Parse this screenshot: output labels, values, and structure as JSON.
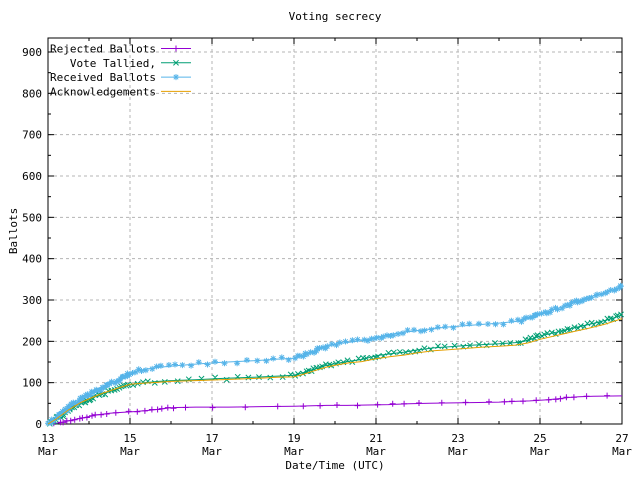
{
  "chart_data": {
    "type": "line",
    "title": "Voting secrecy",
    "xlabel": "Date/Time (UTC)",
    "ylabel": "Ballots",
    "grid": true,
    "legend_position": "top-left",
    "x_unit": "days since 13 Mar 00:00 UTC",
    "xlim": [
      0,
      14
    ],
    "ylim": [
      0,
      940
    ],
    "yticks": [
      0,
      100,
      200,
      300,
      400,
      500,
      600,
      700,
      800,
      900
    ],
    "ytick_minor_step": 50,
    "xticks": [
      {
        "day": 0,
        "line1": "13",
        "line2": "Mar"
      },
      {
        "day": 2,
        "line1": "15",
        "line2": "Mar"
      },
      {
        "day": 4,
        "line1": "17",
        "line2": "Mar"
      },
      {
        "day": 6,
        "line1": "19",
        "line2": "Mar"
      },
      {
        "day": 8,
        "line1": "21",
        "line2": "Mar"
      },
      {
        "day": 10,
        "line1": "23",
        "line2": "Mar"
      },
      {
        "day": 12,
        "line1": "25",
        "line2": "Mar"
      },
      {
        "day": 14,
        "line1": "27",
        "line2": "Mar"
      }
    ],
    "xtick_minor_days": [
      1,
      3,
      5,
      7,
      9,
      11,
      13
    ],
    "grid_color": "#b4b4b4",
    "axis_color": "#000000",
    "series": [
      {
        "name": "Rejected Ballots",
        "color": "#9400d3",
        "marker": "plus",
        "density": "sparse",
        "points": [
          [
            0.1,
            0
          ],
          [
            0.35,
            4
          ],
          [
            0.6,
            10
          ],
          [
            0.9,
            16
          ],
          [
            1.2,
            22
          ],
          [
            1.5,
            26
          ],
          [
            1.8,
            28
          ],
          [
            2.1,
            30
          ],
          [
            2.45,
            33
          ],
          [
            2.75,
            36
          ],
          [
            2.95,
            39
          ],
          [
            3.15,
            40
          ],
          [
            3.6,
            41
          ],
          [
            4.4,
            41
          ],
          [
            5.2,
            42
          ],
          [
            6.0,
            43
          ],
          [
            6.45,
            44
          ],
          [
            6.8,
            45
          ],
          [
            7.3,
            45
          ],
          [
            7.8,
            46
          ],
          [
            8.3,
            47
          ],
          [
            8.8,
            49
          ],
          [
            9.3,
            50
          ],
          [
            9.9,
            51
          ],
          [
            10.5,
            52
          ],
          [
            11.0,
            53
          ],
          [
            11.45,
            55
          ],
          [
            11.75,
            56
          ],
          [
            12.1,
            58
          ],
          [
            12.45,
            61
          ],
          [
            12.7,
            64
          ],
          [
            12.95,
            66
          ],
          [
            13.3,
            67
          ],
          [
            14.0,
            68
          ]
        ]
      },
      {
        "name": "Vote Tallied,",
        "color": "#009e73",
        "marker": "cross",
        "density": "dense",
        "points": [
          [
            0,
            0
          ],
          [
            0.2,
            12
          ],
          [
            0.5,
            33
          ],
          [
            0.8,
            50
          ],
          [
            1.05,
            62
          ],
          [
            1.35,
            74
          ],
          [
            1.65,
            83
          ],
          [
            2.0,
            95
          ],
          [
            2.35,
            100
          ],
          [
            2.7,
            103
          ],
          [
            3.0,
            105
          ],
          [
            3.6,
            107
          ],
          [
            4.2,
            110
          ],
          [
            5.0,
            113
          ],
          [
            5.6,
            116
          ],
          [
            6.0,
            118
          ],
          [
            6.25,
            125
          ],
          [
            6.5,
            133
          ],
          [
            6.8,
            142
          ],
          [
            7.05,
            147
          ],
          [
            7.35,
            152
          ],
          [
            7.65,
            156
          ],
          [
            8.0,
            165
          ],
          [
            8.35,
            170
          ],
          [
            8.7,
            174
          ],
          [
            9.0,
            179
          ],
          [
            9.4,
            184
          ],
          [
            9.8,
            187
          ],
          [
            10.2,
            190
          ],
          [
            10.6,
            192
          ],
          [
            11.0,
            194
          ],
          [
            11.4,
            197
          ],
          [
            11.7,
            202
          ],
          [
            12.0,
            213
          ],
          [
            12.4,
            222
          ],
          [
            12.8,
            232
          ],
          [
            13.2,
            241
          ],
          [
            13.6,
            251
          ],
          [
            14.0,
            263
          ]
        ]
      },
      {
        "name": "Received Ballots",
        "color": "#56b4e9",
        "marker": "asterisk",
        "density": "dense",
        "points": [
          [
            0,
            0
          ],
          [
            0.2,
            15
          ],
          [
            0.5,
            40
          ],
          [
            0.8,
            60
          ],
          [
            1.05,
            74
          ],
          [
            1.35,
            89
          ],
          [
            1.65,
            102
          ],
          [
            2.0,
            124
          ],
          [
            2.35,
            132
          ],
          [
            2.7,
            137
          ],
          [
            3.0,
            140
          ],
          [
            3.6,
            145
          ],
          [
            4.2,
            149
          ],
          [
            5.0,
            153
          ],
          [
            5.6,
            157
          ],
          [
            6.0,
            159
          ],
          [
            6.25,
            168
          ],
          [
            6.5,
            177
          ],
          [
            6.8,
            188
          ],
          [
            7.05,
            194
          ],
          [
            7.35,
            198
          ],
          [
            7.65,
            202
          ],
          [
            8.0,
            209
          ],
          [
            8.3,
            216
          ],
          [
            8.6,
            221
          ],
          [
            9.0,
            226
          ],
          [
            9.4,
            231
          ],
          [
            9.8,
            235
          ],
          [
            10.2,
            238
          ],
          [
            10.6,
            241
          ],
          [
            11.0,
            244
          ],
          [
            11.4,
            248
          ],
          [
            11.65,
            253
          ],
          [
            12.0,
            266
          ],
          [
            12.35,
            277
          ],
          [
            12.7,
            288
          ],
          [
            13.0,
            300
          ],
          [
            13.3,
            310
          ],
          [
            13.6,
            318
          ],
          [
            13.85,
            325
          ],
          [
            14.0,
            333
          ]
        ]
      },
      {
        "name": "Acknowledgements",
        "color": "#e69f00",
        "marker": "none",
        "density": "dense",
        "points": [
          [
            0,
            0
          ],
          [
            0.2,
            12
          ],
          [
            0.5,
            34
          ],
          [
            0.8,
            52
          ],
          [
            1.05,
            63
          ],
          [
            1.35,
            75
          ],
          [
            1.65,
            85
          ],
          [
            2.0,
            96
          ],
          [
            2.35,
            99
          ],
          [
            2.7,
            101
          ],
          [
            3.0,
            103
          ],
          [
            3.6,
            105
          ],
          [
            4.2,
            107
          ],
          [
            5.0,
            110
          ],
          [
            5.6,
            113
          ],
          [
            6.0,
            114
          ],
          [
            6.25,
            121
          ],
          [
            6.5,
            129
          ],
          [
            6.8,
            138
          ],
          [
            7.05,
            143
          ],
          [
            7.35,
            148
          ],
          [
            7.65,
            151
          ],
          [
            8.0,
            158
          ],
          [
            8.35,
            163
          ],
          [
            8.7,
            167
          ],
          [
            9.0,
            172
          ],
          [
            9.4,
            177
          ],
          [
            9.8,
            180
          ],
          [
            10.2,
            183
          ],
          [
            10.6,
            186
          ],
          [
            11.0,
            188
          ],
          [
            11.4,
            191
          ],
          [
            11.7,
            196
          ],
          [
            12.0,
            205
          ],
          [
            12.4,
            214
          ],
          [
            12.8,
            223
          ],
          [
            13.2,
            232
          ],
          [
            13.6,
            242
          ],
          [
            14.0,
            255
          ]
        ]
      }
    ]
  }
}
